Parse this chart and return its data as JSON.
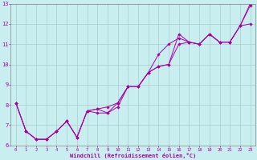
{
  "title": "",
  "xlabel": "Windchill (Refroidissement éolien,°C)",
  "ylabel": "",
  "background_color": "#c8eef0",
  "line_color": "#aa00aa",
  "grid_color": "#aacccc",
  "axis_color": "#666666",
  "tick_color": "#aa00aa",
  "xlim": [
    -0.5,
    23.5
  ],
  "ylim": [
    6.0,
    13.0
  ],
  "yticks": [
    6,
    7,
    8,
    9,
    10,
    11,
    12,
    13
  ],
  "xticks": [
    0,
    1,
    2,
    3,
    4,
    5,
    6,
    7,
    8,
    9,
    10,
    11,
    12,
    13,
    14,
    15,
    16,
    17,
    18,
    19,
    20,
    21,
    22,
    23
  ],
  "lines": [
    [
      8.1,
      6.7,
      6.3,
      6.3,
      6.7,
      7.2,
      6.4,
      7.7,
      7.8,
      7.9,
      8.1,
      8.9,
      8.9,
      9.6,
      10.5,
      11.0,
      11.3,
      11.1,
      11.0,
      11.5,
      11.1,
      11.1,
      11.9,
      13.0
    ],
    [
      8.1,
      6.7,
      6.3,
      6.3,
      6.7,
      7.2,
      6.4,
      7.7,
      7.8,
      7.6,
      7.9,
      8.9,
      8.9,
      9.6,
      9.9,
      10.0,
      11.5,
      11.1,
      11.0,
      11.5,
      11.1,
      11.1,
      11.9,
      12.0
    ],
    [
      8.1,
      6.7,
      6.3,
      6.3,
      6.7,
      7.2,
      6.4,
      7.7,
      7.6,
      7.6,
      8.1,
      8.9,
      8.9,
      9.6,
      9.9,
      10.0,
      11.0,
      11.1,
      11.0,
      11.5,
      11.1,
      11.1,
      11.9,
      12.9
    ]
  ]
}
